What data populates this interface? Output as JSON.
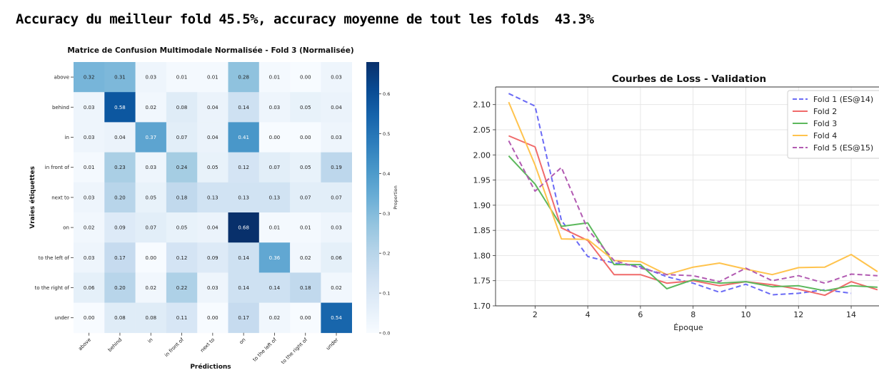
{
  "headline": "Accuracy du meilleur fold 45.5%, accuracy moyenne de tout les folds  43.3%",
  "chart_data": [
    {
      "type": "heatmap",
      "title": "Matrice de Confusion Multimodale Normalisée - Fold 3 (Normalisée)",
      "xlabel": "Prédictions",
      "ylabel": "Vraies étiquettes",
      "colorbar_label": "Proportion",
      "colorbar_ticks": [
        "0.0",
        "0.1",
        "0.2",
        "0.3",
        "0.4",
        "0.5",
        "0.6"
      ],
      "colorbar_range": [
        0,
        0.68
      ],
      "colormap": [
        "#f7fbff",
        "#08306b"
      ],
      "categories": [
        "above",
        "behind",
        "in",
        "in front of",
        "next to",
        "on",
        "to the left of",
        "to the right of",
        "under"
      ],
      "matrix": [
        [
          0.32,
          0.31,
          0.03,
          0.01,
          0.01,
          0.28,
          0.01,
          0.0,
          0.03
        ],
        [
          0.03,
          0.58,
          0.02,
          0.08,
          0.04,
          0.14,
          0.03,
          0.05,
          0.04
        ],
        [
          0.03,
          0.04,
          0.37,
          0.07,
          0.04,
          0.41,
          0.0,
          0.0,
          0.03
        ],
        [
          0.01,
          0.23,
          0.03,
          0.24,
          0.05,
          0.12,
          0.07,
          0.05,
          0.19
        ],
        [
          0.03,
          0.2,
          0.05,
          0.18,
          0.13,
          0.13,
          0.13,
          0.07,
          0.07
        ],
        [
          0.02,
          0.09,
          0.07,
          0.05,
          0.04,
          0.68,
          0.01,
          0.01,
          0.03
        ],
        [
          0.03,
          0.17,
          0.0,
          0.12,
          0.09,
          0.14,
          0.36,
          0.02,
          0.06
        ],
        [
          0.06,
          0.2,
          0.02,
          0.22,
          0.03,
          0.14,
          0.14,
          0.18,
          0.02
        ],
        [
          0.0,
          0.08,
          0.08,
          0.11,
          0.0,
          0.17,
          0.02,
          0.0,
          0.54
        ]
      ]
    },
    {
      "type": "line",
      "title": "Courbes de Loss - Validation",
      "xlabel": "Époque",
      "ylabel": "",
      "xlim": [
        0.5,
        15.3
      ],
      "ylim": [
        1.7,
        2.135
      ],
      "xticks": [
        2,
        4,
        6,
        8,
        10,
        12,
        14
      ],
      "yticks": [
        "1.70",
        "1.75",
        "1.80",
        "1.85",
        "1.90",
        "1.95",
        "2.00",
        "2.05",
        "2.10"
      ],
      "grid": true,
      "legend": "top-right",
      "series": [
        {
          "name": "Fold 1 (ES@14)",
          "color": "#6b6bf5",
          "dash": true,
          "x": [
            1,
            2,
            3,
            4,
            5,
            6,
            7,
            8,
            9,
            10,
            11,
            12,
            13,
            14
          ],
          "y": [
            2.122,
            2.097,
            1.87,
            1.798,
            1.785,
            1.778,
            1.758,
            1.745,
            1.727,
            1.743,
            1.722,
            1.725,
            1.732,
            1.725
          ]
        },
        {
          "name": "Fold 2",
          "color": "#f06a6a",
          "dash": false,
          "x": [
            1,
            2,
            3,
            4,
            5,
            6,
            7,
            8,
            9,
            10,
            11,
            12,
            13,
            14,
            15
          ],
          "y": [
            2.038,
            2.016,
            1.855,
            1.83,
            1.762,
            1.762,
            1.745,
            1.75,
            1.74,
            1.748,
            1.742,
            1.733,
            1.721,
            1.748,
            1.732
          ]
        },
        {
          "name": "Fold 3",
          "color": "#5cb85c",
          "dash": false,
          "x": [
            1,
            2,
            3,
            4,
            5,
            6,
            7,
            8,
            9,
            10,
            11,
            12,
            13,
            14,
            15
          ],
          "y": [
            1.998,
            1.942,
            1.858,
            1.865,
            1.782,
            1.782,
            1.734,
            1.752,
            1.745,
            1.748,
            1.738,
            1.74,
            1.73,
            1.74,
            1.737
          ]
        },
        {
          "name": "Fold 4",
          "color": "#ffc34d",
          "dash": false,
          "x": [
            1,
            2,
            3,
            4,
            5,
            6,
            7,
            8,
            9,
            10,
            11,
            12,
            13,
            14,
            15
          ],
          "y": [
            2.105,
            1.98,
            1.833,
            1.832,
            1.79,
            1.788,
            1.762,
            1.777,
            1.785,
            1.773,
            1.762,
            1.776,
            1.777,
            1.802,
            1.768
          ]
        },
        {
          "name": "Fold 5 (ES@15)",
          "color": "#b25bb2",
          "dash": true,
          "x": [
            1,
            2,
            3,
            4,
            5,
            6,
            7,
            8,
            9,
            10,
            11,
            12,
            13,
            14,
            15
          ],
          "y": [
            2.028,
            1.928,
            1.975,
            1.852,
            1.79,
            1.775,
            1.762,
            1.76,
            1.748,
            1.775,
            1.75,
            1.76,
            1.745,
            1.763,
            1.76
          ]
        }
      ]
    }
  ]
}
